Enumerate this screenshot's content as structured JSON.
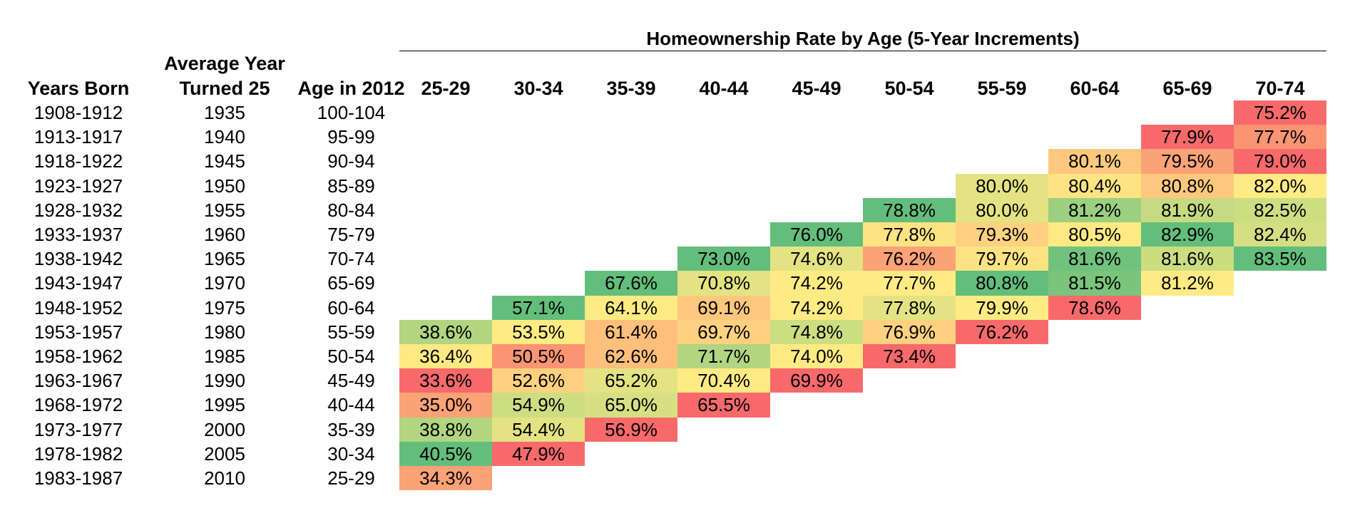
{
  "chart_data": {
    "type": "table",
    "title": "Homeownership Rate by Age (5-Year Increments)",
    "row_headers": {
      "years_born": "Years Born",
      "avg_year_line1": "Average Year",
      "avg_year_line2": "Turned 25",
      "age_2012": "Age in 2012"
    },
    "columns": [
      "25-29",
      "30-34",
      "35-39",
      "40-44",
      "45-49",
      "50-54",
      "55-59",
      "60-64",
      "65-69",
      "70-74"
    ],
    "rows": [
      {
        "born": "1908-1912",
        "turned25": "1935",
        "age": "100-104",
        "values": [
          null,
          null,
          null,
          null,
          null,
          null,
          null,
          null,
          null,
          "75.2%"
        ]
      },
      {
        "born": "1913-1917",
        "turned25": "1940",
        "age": "95-99",
        "values": [
          null,
          null,
          null,
          null,
          null,
          null,
          null,
          null,
          "77.9%",
          "77.7%"
        ]
      },
      {
        "born": "1918-1922",
        "turned25": "1945",
        "age": "90-94",
        "values": [
          null,
          null,
          null,
          null,
          null,
          null,
          null,
          "80.1%",
          "79.5%",
          "79.0%"
        ]
      },
      {
        "born": "1923-1927",
        "turned25": "1950",
        "age": "85-89",
        "values": [
          null,
          null,
          null,
          null,
          null,
          null,
          "80.0%",
          "80.4%",
          "80.8%",
          "82.0%"
        ]
      },
      {
        "born": "1928-1932",
        "turned25": "1955",
        "age": "80-84",
        "values": [
          null,
          null,
          null,
          null,
          null,
          "78.8%",
          "80.0%",
          "81.2%",
          "81.9%",
          "82.5%"
        ]
      },
      {
        "born": "1933-1937",
        "turned25": "1960",
        "age": "75-79",
        "values": [
          null,
          null,
          null,
          null,
          "76.0%",
          "77.8%",
          "79.3%",
          "80.5%",
          "82.9%",
          "82.4%"
        ]
      },
      {
        "born": "1938-1942",
        "turned25": "1965",
        "age": "70-74",
        "values": [
          null,
          null,
          null,
          "73.0%",
          "74.6%",
          "76.2%",
          "79.7%",
          "81.6%",
          "81.6%",
          "83.5%"
        ]
      },
      {
        "born": "1943-1947",
        "turned25": "1970",
        "age": "65-69",
        "values": [
          null,
          null,
          "67.6%",
          "70.8%",
          "74.2%",
          "77.7%",
          "80.8%",
          "81.5%",
          "81.2%",
          null
        ]
      },
      {
        "born": "1948-1952",
        "turned25": "1975",
        "age": "60-64",
        "values": [
          null,
          "57.1%",
          "64.1%",
          "69.1%",
          "74.2%",
          "77.8%",
          "79.9%",
          "78.6%",
          null,
          null
        ]
      },
      {
        "born": "1953-1957",
        "turned25": "1980",
        "age": "55-59",
        "values": [
          "38.6%",
          "53.5%",
          "61.4%",
          "69.7%",
          "74.8%",
          "76.9%",
          "76.2%",
          null,
          null,
          null
        ]
      },
      {
        "born": "1958-1962",
        "turned25": "1985",
        "age": "50-54",
        "values": [
          "36.4%",
          "50.5%",
          "62.6%",
          "71.7%",
          "74.0%",
          "73.4%",
          null,
          null,
          null,
          null
        ]
      },
      {
        "born": "1963-1967",
        "turned25": "1990",
        "age": "45-49",
        "values": [
          "33.6%",
          "52.6%",
          "65.2%",
          "70.4%",
          "69.9%",
          null,
          null,
          null,
          null,
          null
        ]
      },
      {
        "born": "1968-1972",
        "turned25": "1995",
        "age": "40-44",
        "values": [
          "35.0%",
          "54.9%",
          "65.0%",
          "65.5%",
          null,
          null,
          null,
          null,
          null,
          null
        ]
      },
      {
        "born": "1973-1977",
        "turned25": "2000",
        "age": "35-39",
        "values": [
          "38.8%",
          "54.4%",
          "56.9%",
          null,
          null,
          null,
          null,
          null,
          null,
          null
        ]
      },
      {
        "born": "1978-1982",
        "turned25": "2005",
        "age": "30-34",
        "values": [
          "40.5%",
          "47.9%",
          null,
          null,
          null,
          null,
          null,
          null,
          null,
          null
        ]
      },
      {
        "born": "1983-1987",
        "turned25": "2010",
        "age": "25-29",
        "values": [
          "34.3%",
          null,
          null,
          null,
          null,
          null,
          null,
          null,
          null,
          null
        ]
      }
    ],
    "colors": [
      [
        null,
        null,
        null,
        null,
        null,
        null,
        null,
        null,
        null,
        "#f8696b"
      ],
      [
        null,
        null,
        null,
        null,
        null,
        null,
        null,
        null,
        "#f8696b",
        "#fa9473"
      ],
      [
        null,
        null,
        null,
        null,
        null,
        null,
        null,
        "#fdc87d",
        "#fba276",
        "#f8696b"
      ],
      [
        null,
        null,
        null,
        null,
        null,
        null,
        "#e3e383",
        "#fee382",
        "#fdc87d",
        "#ffeb84"
      ],
      [
        null,
        null,
        null,
        null,
        null,
        "#63be7b",
        "#e3e383",
        "#9ccf7f",
        "#c8da81",
        "#cddd82"
      ],
      [
        null,
        null,
        null,
        null,
        "#63be7b",
        "#fee382",
        "#fdd17f",
        "#fee983",
        "#63be7b",
        "#d3df82"
      ],
      [
        null,
        null,
        null,
        "#63be7b",
        "#e3e383",
        "#fba276",
        "#fee382",
        "#71c27c",
        "#cbdc81",
        "#63be7b"
      ],
      [
        null,
        null,
        "#63be7b",
        "#e3e383",
        "#ffeb84",
        "#ffeb84",
        "#63be7b",
        "#7ac47c",
        "#ffeb84",
        null
      ],
      [
        null,
        "#63be7b",
        "#ffeb84",
        "#fdc87d",
        "#ffeb84",
        "#e3e383",
        "#ffeb84",
        "#f8696b",
        null,
        null
      ],
      [
        "#b1d580",
        "#ffeb84",
        "#fdbf7b",
        "#fdd17f",
        "#cddd82",
        "#fdd17f",
        "#f8696b",
        null,
        null,
        null
      ],
      [
        "#fee983",
        "#fa9473",
        "#fdbf7b",
        "#b1d580",
        "#ffeb84",
        "#f8696b",
        null,
        null,
        null,
        null
      ],
      [
        "#f8696b",
        "#fdd17f",
        "#e3e383",
        "#ffeb84",
        "#f8696b",
        null,
        null,
        null,
        null,
        null
      ],
      [
        "#fba276",
        "#cddd82",
        "#d6e082",
        "#f8696b",
        null,
        null,
        null,
        null,
        null,
        null
      ],
      [
        "#b1d580",
        "#e3e383",
        "#f8696b",
        null,
        null,
        null,
        null,
        null,
        null,
        null
      ],
      [
        "#63be7b",
        "#f8696b",
        null,
        null,
        null,
        null,
        null,
        null,
        null,
        null
      ],
      [
        "#fba276",
        null,
        null,
        null,
        null,
        null,
        null,
        null,
        null,
        null
      ]
    ]
  }
}
